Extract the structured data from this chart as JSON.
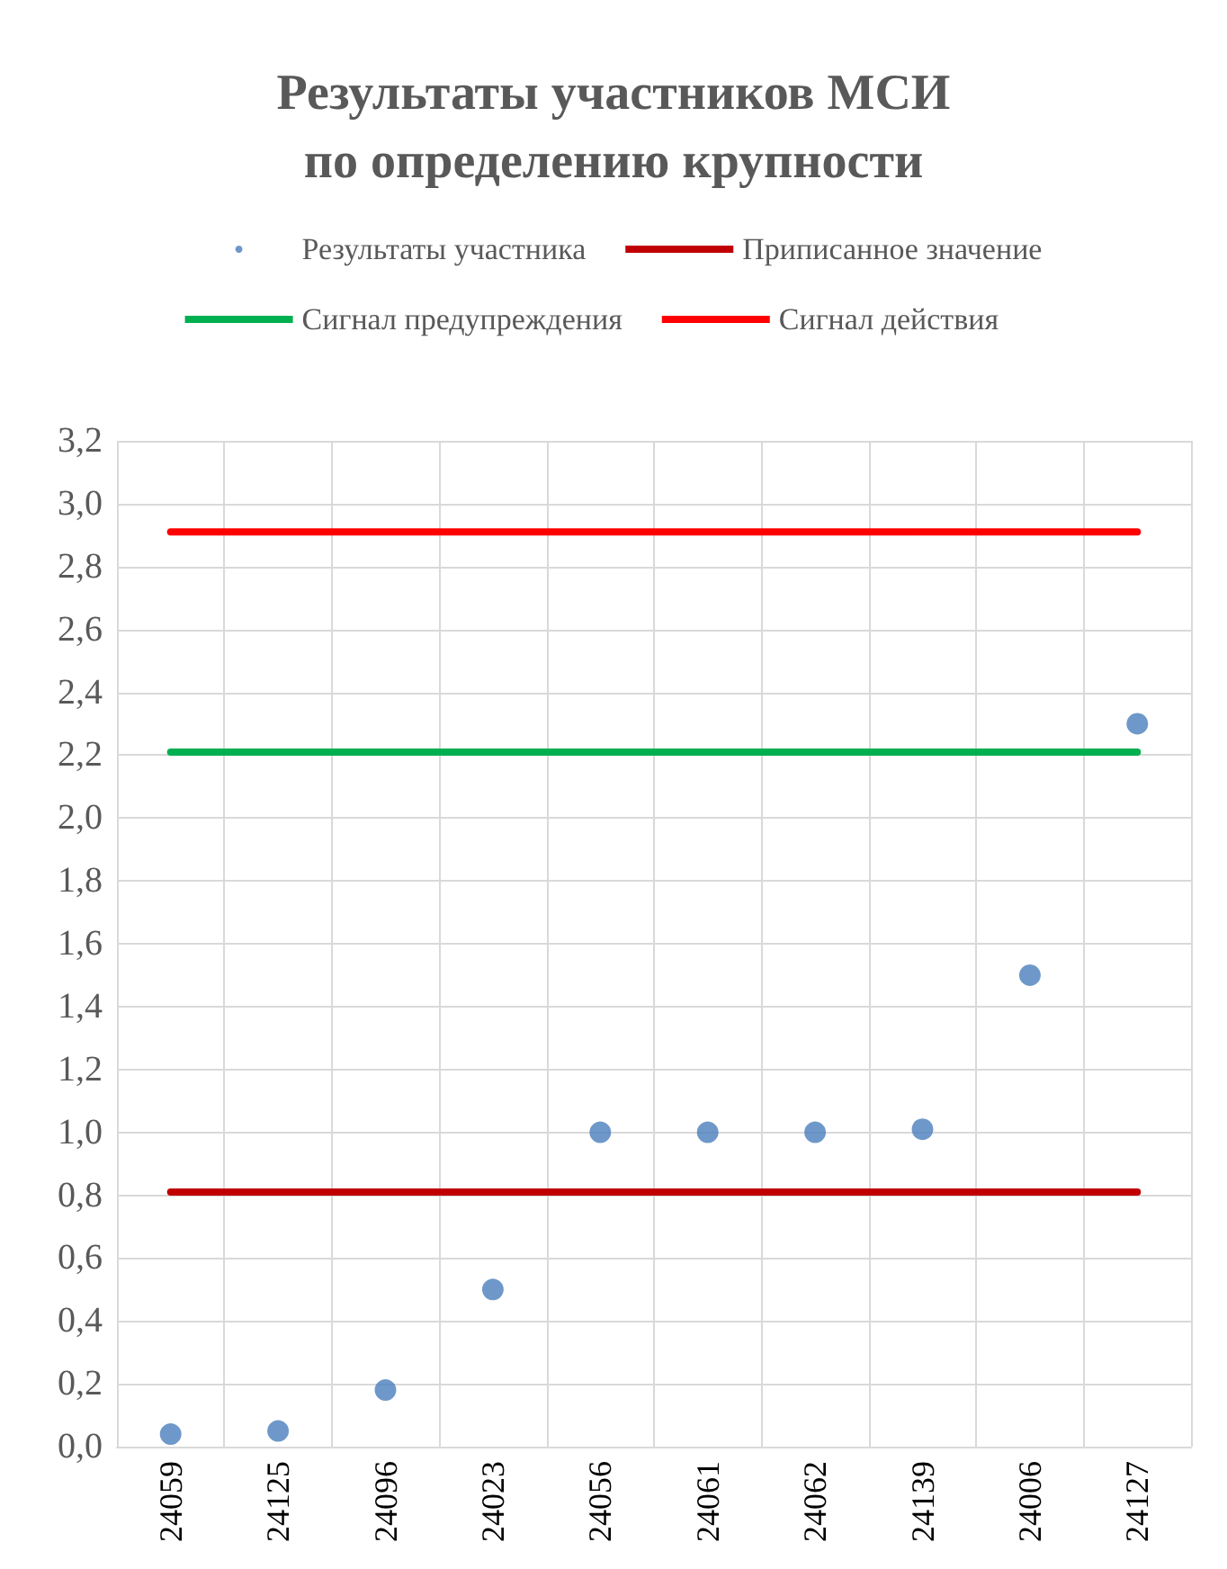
{
  "chart_data": {
    "type": "scatter",
    "title": "Результаты участников МСИ\nпо определению крупности",
    "categories": [
      "24059",
      "24125",
      "24096",
      "24023",
      "24056",
      "24061",
      "24062",
      "24139",
      "24006",
      "24127"
    ],
    "series": [
      {
        "name": "Результаты участника",
        "color": "#4a7ebb",
        "marker": "circle",
        "values": [
          0.04,
          0.05,
          0.18,
          0.5,
          1.0,
          1.0,
          1.0,
          1.01,
          1.5,
          2.3
        ]
      },
      {
        "name": "Приписанное значение",
        "type": "line",
        "color": "#c00000",
        "marker": "none",
        "values": [
          0.81,
          0.81,
          0.81,
          0.81,
          0.81,
          0.81,
          0.81,
          0.81,
          0.81,
          0.81
        ]
      },
      {
        "name": "Сигнал предупреждения",
        "type": "line",
        "color": "#00b050",
        "marker": "none",
        "values": [
          2.21,
          2.21,
          2.21,
          2.21,
          2.21,
          2.21,
          2.21,
          2.21,
          2.21,
          2.21
        ]
      },
      {
        "name": "Сигнал действия",
        "type": "line",
        "color": "#ff0000",
        "marker": "none",
        "values": [
          2.91,
          2.91,
          2.91,
          2.91,
          2.91,
          2.91,
          2.91,
          2.91,
          2.91,
          2.91
        ]
      }
    ],
    "ylim": [
      0,
      3.2
    ],
    "yticks": [
      {
        "value": 0,
        "label": "0,0"
      },
      {
        "value": 0.2,
        "label": "0,2"
      },
      {
        "value": 0.4,
        "label": "0,4"
      },
      {
        "value": 0.6,
        "label": "0,6"
      },
      {
        "value": 0.8,
        "label": "0,8"
      },
      {
        "value": 1.0,
        "label": "1,0"
      },
      {
        "value": 1.2,
        "label": "1,2"
      },
      {
        "value": 1.4,
        "label": "1,4"
      },
      {
        "value": 1.6,
        "label": "1,6"
      },
      {
        "value": 1.8,
        "label": "1,8"
      },
      {
        "value": 2.0,
        "label": "2,0"
      },
      {
        "value": 2.2,
        "label": "2,2"
      },
      {
        "value": 2.4,
        "label": "2,4"
      },
      {
        "value": 2.6,
        "label": "2,6"
      },
      {
        "value": 2.8,
        "label": "2,8"
      },
      {
        "value": 3.0,
        "label": "3,0"
      },
      {
        "value": 3.2,
        "label": "3,2"
      }
    ],
    "grid": true,
    "legend": "top",
    "line_style": "solid"
  }
}
